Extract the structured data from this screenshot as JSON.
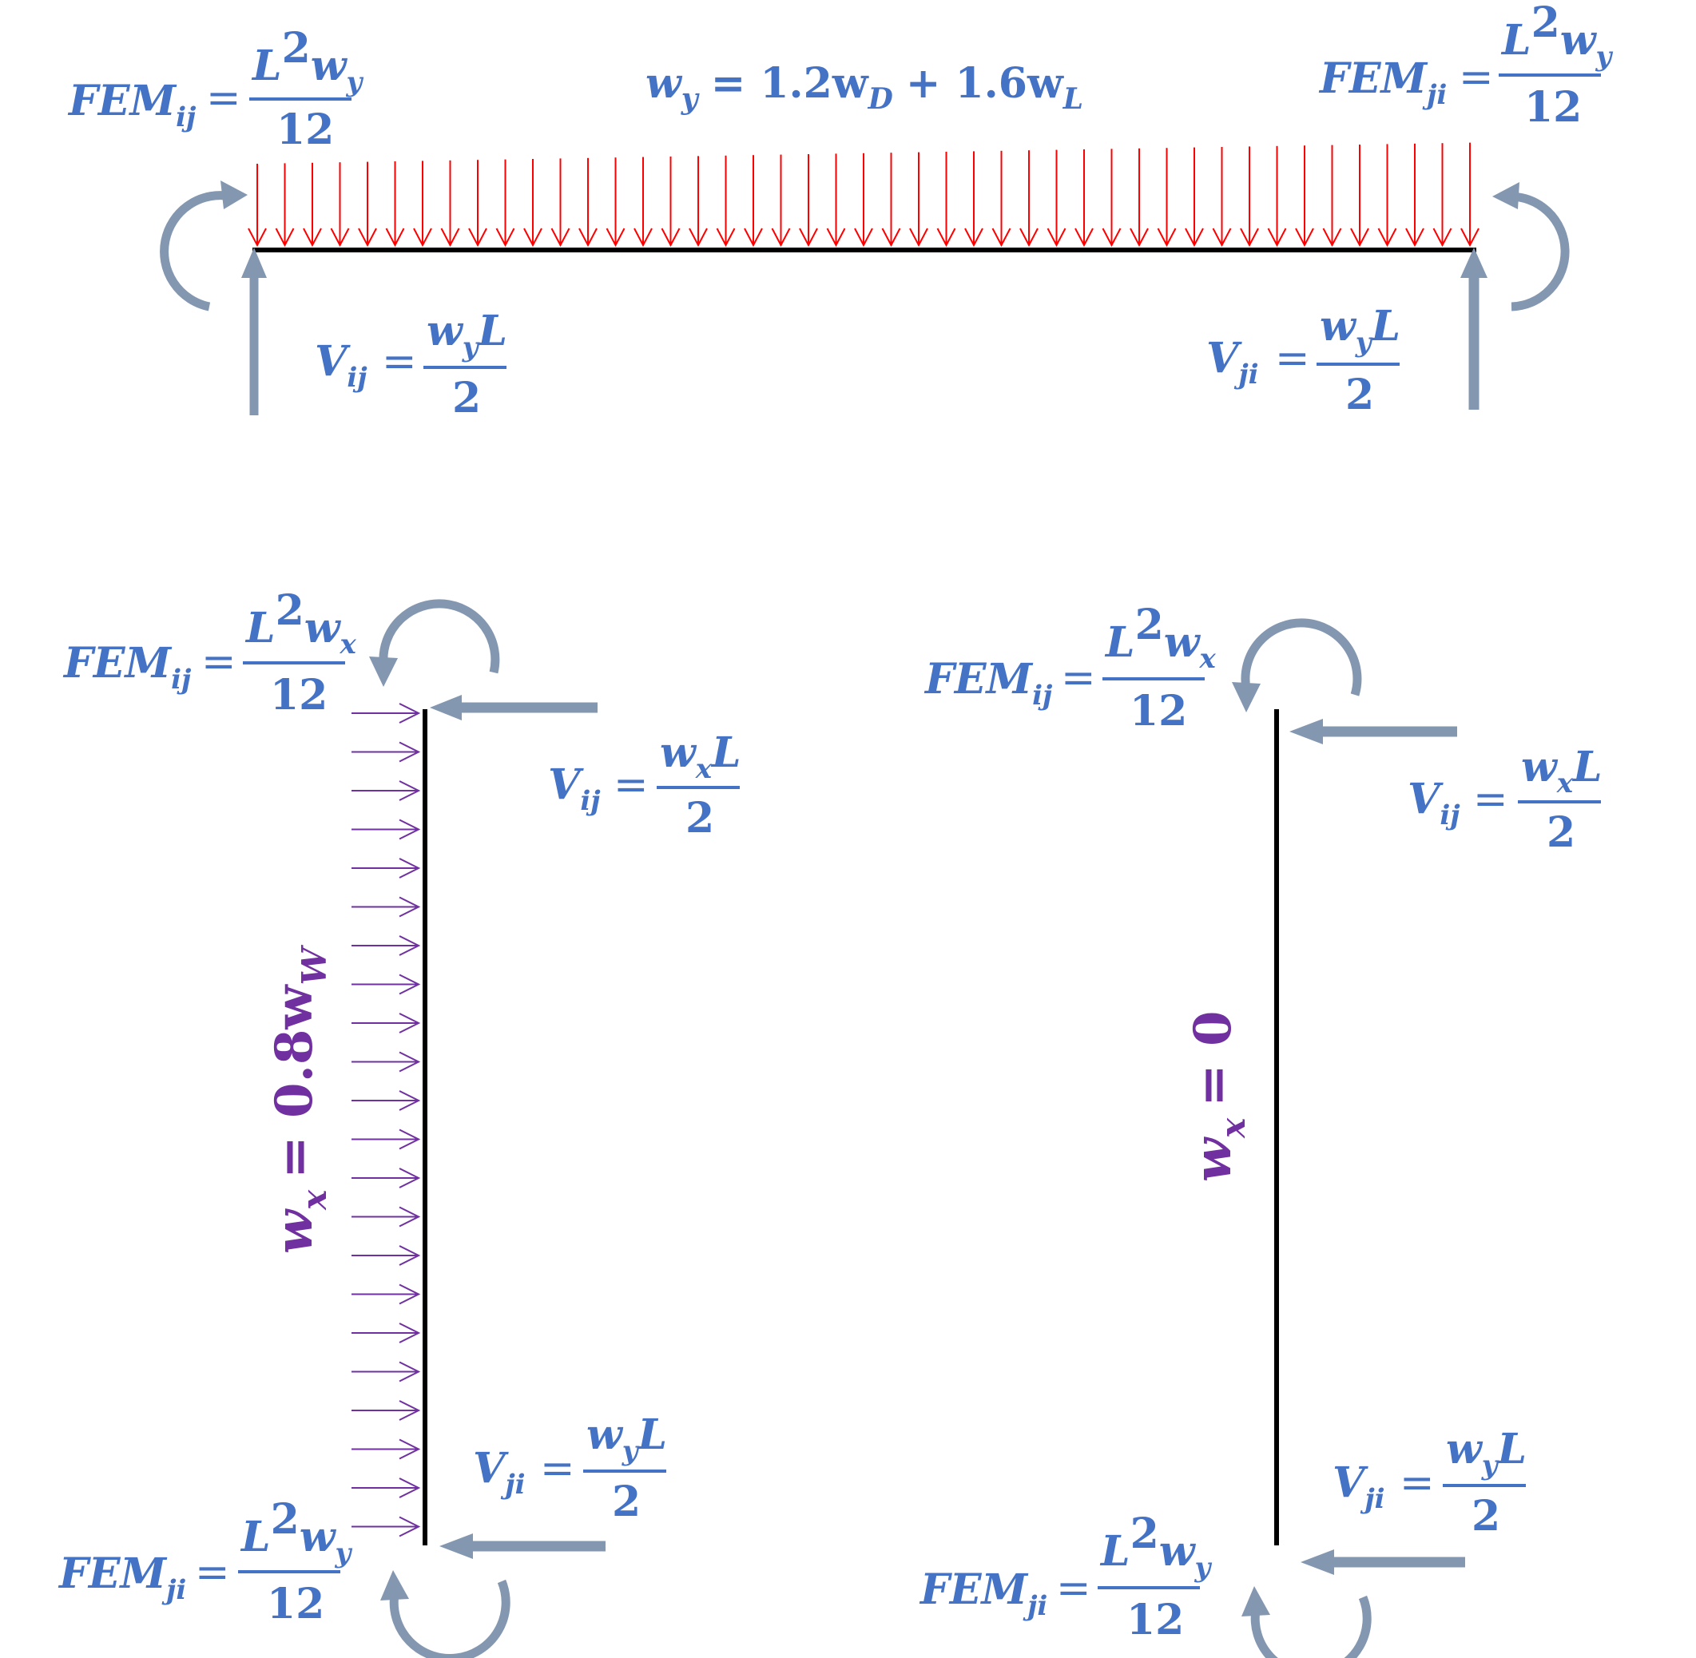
{
  "colors": {
    "formula": "#4472C4",
    "load_label": "#7030A0",
    "beam_load_arrows": "#FF0000",
    "column_load_arrows": "#7030A0",
    "reaction_arrows": "#8497B0",
    "member": "#000000"
  },
  "top_beam": {
    "load_equation": {
      "lhs": "w",
      "lhs_sub": "y",
      "rhs": "= 1.2w",
      "sub_D": "D",
      "plus": "+ 1.6w",
      "sub_L": "L"
    },
    "fem_left": {
      "name": "FEM",
      "sub": "ij",
      "eq": "=",
      "num": "L",
      "sup": "2",
      "num_var": "w",
      "num_sub": "y",
      "den": "12"
    },
    "fem_right": {
      "name": "FEM",
      "sub": "ji",
      "eq": "=",
      "num": "L",
      "sup": "2",
      "num_var": "w",
      "num_sub": "y",
      "den": "12"
    },
    "v_left": {
      "name": "V",
      "sub": "ij",
      "eq": "=",
      "num_var": "w",
      "num_sub": "y",
      "num_tail": "L",
      "den": "2"
    },
    "v_right": {
      "name": "V",
      "sub": "ji",
      "eq": "=",
      "num_var": "w",
      "num_sub": "y",
      "num_tail": "L",
      "den": "2"
    }
  },
  "left_column": {
    "load_label": {
      "lhs": "w",
      "lhs_sub": "x",
      "rhs": "= 0.8w",
      "rhs_sub": "W"
    },
    "fem_top": {
      "name": "FEM",
      "sub": "ij",
      "eq": "=",
      "num": "L",
      "sup": "2",
      "num_var": "w",
      "num_sub": "x",
      "den": "12"
    },
    "v_top": {
      "name": "V",
      "sub": "ij",
      "eq": "=",
      "num_var": "w",
      "num_sub": "x",
      "num_tail": "L",
      "den": "2"
    },
    "v_bottom": {
      "name": "V",
      "sub": "ji",
      "eq": "=",
      "num_var": "w",
      "num_sub": "y",
      "num_tail": "L",
      "den": "2"
    },
    "fem_bottom": {
      "name": "FEM",
      "sub": "ji",
      "eq": "=",
      "num": "L",
      "sup": "2",
      "num_var": "w",
      "num_sub": "y",
      "den": "12"
    }
  },
  "right_column": {
    "load_label": {
      "lhs": "w",
      "lhs_sub": "x",
      "rhs": "= 0"
    },
    "fem_top": {
      "name": "FEM",
      "sub": "ij",
      "eq": "=",
      "num": "L",
      "sup": "2",
      "num_var": "w",
      "num_sub": "x",
      "den": "12"
    },
    "v_top": {
      "name": "V",
      "sub": "ij",
      "eq": "=",
      "num_var": "w",
      "num_sub": "x",
      "num_tail": "L",
      "den": "2"
    },
    "v_bottom": {
      "name": "V",
      "sub": "ji",
      "eq": "=",
      "num_var": "w",
      "num_sub": "y",
      "num_tail": "L",
      "den": "2"
    },
    "fem_bottom": {
      "name": "FEM",
      "sub": "ji",
      "eq": "=",
      "num": "L",
      "sup": "2",
      "num_var": "w",
      "num_sub": "y",
      "den": "12"
    }
  }
}
